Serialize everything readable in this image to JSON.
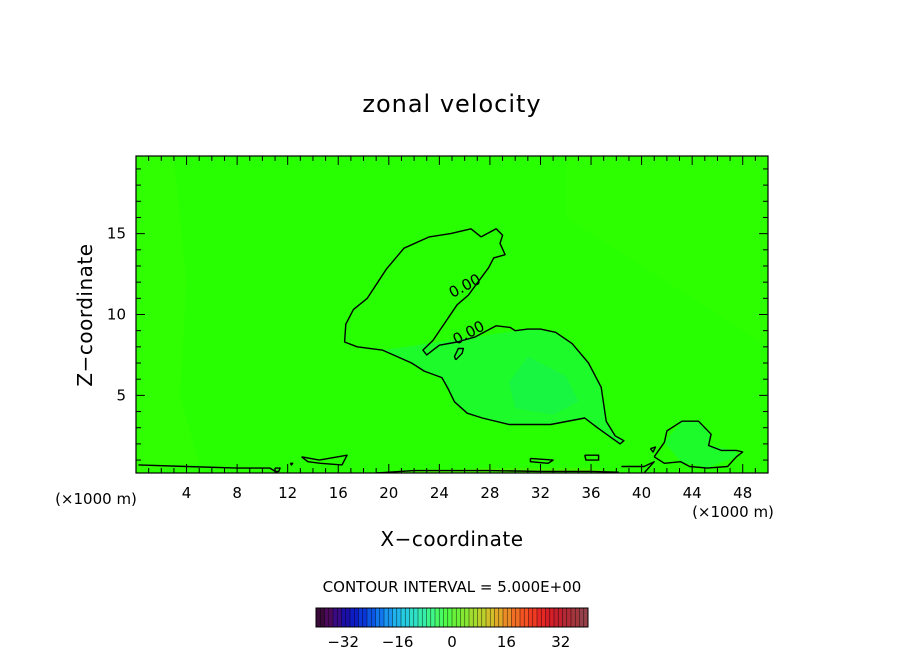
{
  "chart_data": {
    "type": "heatmap",
    "title": "zonal velocity",
    "xlabel": "X−coordinate",
    "ylabel": "Z−coordinate",
    "x_unit_label_left": "(×1000 m)",
    "x_unit_label_right": "(×1000 m)",
    "xlim": [
      0,
      50
    ],
    "ylim": [
      0.2,
      19.8
    ],
    "x_ticks": [
      4,
      8,
      12,
      16,
      20,
      24,
      28,
      32,
      36,
      40,
      44,
      48
    ],
    "y_ticks": [
      5,
      10,
      15
    ],
    "contour_interval_text": "CONTOUR INTERVAL = 5.000E+00",
    "contour_labels": [
      {
        "text": "0.00",
        "x": 26.2,
        "y": 11.5
      },
      {
        "text": "0.00",
        "x": 26.5,
        "y": 8.6
      }
    ],
    "contour_zero_lines": [
      [
        [
          27.3,
          14.8
        ],
        [
          28.5,
          15.3
        ],
        [
          29,
          14.9
        ],
        [
          28.8,
          14.4
        ],
        [
          29.2,
          13.7
        ],
        [
          28.3,
          13.5
        ],
        [
          27.9,
          12.9
        ],
        [
          26.3,
          11.2
        ],
        [
          25.4,
          10.6
        ],
        [
          23.5,
          8.4
        ],
        [
          22.7,
          7.8
        ],
        [
          23,
          7.5
        ],
        [
          24,
          8.1
        ],
        [
          25.4,
          8.3
        ],
        [
          26.8,
          8.6
        ],
        [
          28.5,
          9.3
        ],
        [
          29.6,
          9.2
        ],
        [
          30,
          9.0
        ],
        [
          31,
          9.1
        ],
        [
          32,
          9.1
        ],
        [
          33.2,
          8.9
        ],
        [
          34.5,
          8.2
        ],
        [
          35.8,
          7
        ],
        [
          36.8,
          5.5
        ],
        [
          37.2,
          3.4
        ],
        [
          37.9,
          2.5
        ],
        [
          38.6,
          2.2
        ],
        [
          38.3,
          2.0
        ],
        [
          36.5,
          3.0
        ],
        [
          35.5,
          3.6
        ],
        [
          32.8,
          3.2
        ],
        [
          29.5,
          3.2
        ],
        [
          27.4,
          3.6
        ],
        [
          26.2,
          3.9
        ],
        [
          25.2,
          4.6
        ],
        [
          24.7,
          5.4
        ],
        [
          24.2,
          6.1
        ],
        [
          22.8,
          6.5
        ],
        [
          21.8,
          7.0
        ],
        [
          19.5,
          7.8
        ],
        [
          17.5,
          8.0
        ],
        [
          16.5,
          8.3
        ],
        [
          16.6,
          9.4
        ],
        [
          17.2,
          10.3
        ],
        [
          18.3,
          11.0
        ],
        [
          19.8,
          12.8
        ],
        [
          21.2,
          14.1
        ],
        [
          23.2,
          14.8
        ],
        [
          24.9,
          15.0
        ],
        [
          26.5,
          15.3
        ],
        [
          27.3,
          14.8
        ]
      ],
      [
        [
          25.3,
          7.2
        ],
        [
          25.8,
          7.6
        ],
        [
          25.9,
          7.9
        ],
        [
          25.5,
          7.9
        ],
        [
          25.2,
          7.4
        ],
        [
          25.3,
          7.2
        ]
      ],
      [
        [
          41.0,
          1.2
        ],
        [
          41.8,
          2.1
        ],
        [
          42.0,
          2.8
        ],
        [
          43.2,
          3.4
        ],
        [
          44.5,
          3.4
        ],
        [
          45.5,
          2.6
        ],
        [
          45.3,
          1.9
        ],
        [
          46.3,
          1.6
        ],
        [
          47.5,
          1.6
        ],
        [
          48.0,
          1.5
        ],
        [
          47.5,
          1.2
        ],
        [
          46.8,
          0.6
        ],
        [
          45.2,
          0.5
        ],
        [
          43.8,
          0.6
        ],
        [
          43.1,
          0.9
        ],
        [
          41.8,
          0.8
        ],
        [
          41.0,
          1.2
        ]
      ],
      [
        [
          0.2,
          0.7
        ],
        [
          4,
          0.6
        ],
        [
          8,
          0.5
        ],
        [
          10.6,
          0.5
        ],
        [
          11.2,
          0.2
        ]
      ],
      [
        [
          13.1,
          1.2
        ],
        [
          14.5,
          1.0
        ],
        [
          16.7,
          1.3
        ],
        [
          16.3,
          0.7
        ],
        [
          14.6,
          0.8
        ],
        [
          13.6,
          0.9
        ],
        [
          13.1,
          1.2
        ]
      ],
      [
        [
          11.0,
          0.5
        ],
        [
          11.4,
          0.5
        ],
        [
          11.3,
          0.3
        ],
        [
          11.0,
          0.3
        ],
        [
          11.0,
          0.5
        ]
      ],
      [
        [
          31.2,
          1.1
        ],
        [
          33.0,
          1.0
        ],
        [
          32.6,
          0.8
        ],
        [
          31.2,
          0.9
        ],
        [
          31.2,
          1.1
        ]
      ],
      [
        [
          35.5,
          1.3
        ],
        [
          36.6,
          1.3
        ],
        [
          36.6,
          1.0
        ],
        [
          35.6,
          1.0
        ],
        [
          35.5,
          1.3
        ]
      ],
      [
        [
          38.4,
          0.6
        ],
        [
          40.2,
          0.6
        ],
        [
          41.0,
          0.9
        ],
        [
          40.2,
          0.2
        ]
      ],
      [
        [
          19.0,
          0.2
        ],
        [
          22.0,
          0.35
        ],
        [
          28,
          0.35
        ],
        [
          32,
          0.3
        ],
        [
          36,
          0.3
        ],
        [
          38.2,
          0.25
        ]
      ],
      [
        [
          40.7,
          1.7
        ],
        [
          41.1,
          1.8
        ],
        [
          40.9,
          1.5
        ],
        [
          40.7,
          1.7
        ]
      ],
      [
        [
          12.2,
          0.8
        ],
        [
          12.4,
          0.8
        ],
        [
          12.3,
          0.7
        ],
        [
          12.2,
          0.8
        ]
      ]
    ],
    "colorbar": {
      "tick_labels": [
        "−32",
        "−16",
        "0",
        "16",
        "32"
      ],
      "tick_values": [
        -32,
        -16,
        0,
        16,
        32
      ],
      "range": [
        -40,
        40
      ],
      "colors": [
        "#3a0a3a",
        "#4b0a5c",
        "#3a0b85",
        "#1a10a8",
        "#0d1cc4",
        "#0a36d8",
        "#0c56e6",
        "#1077ee",
        "#1896f0",
        "#20b4ec",
        "#26cce0",
        "#2ee0c6",
        "#36eeaa",
        "#3ef68a",
        "#46fa66",
        "#52fa48",
        "#6af23a",
        "#86e832",
        "#a2dc2e",
        "#bcd02c",
        "#d2c02a",
        "#e2a828",
        "#ec8c26",
        "#f26e24",
        "#f45222",
        "#f03a22",
        "#e62824",
        "#d61e28",
        "#c4202e",
        "#b22a36",
        "#a4363e",
        "#96404a"
      ]
    },
    "field_colors": {
      "background": "#28ff00",
      "positive_tint": "#18f848",
      "weak_negative_tint": "#3cff00",
      "strong_negative_tint": "#58f000"
    }
  }
}
